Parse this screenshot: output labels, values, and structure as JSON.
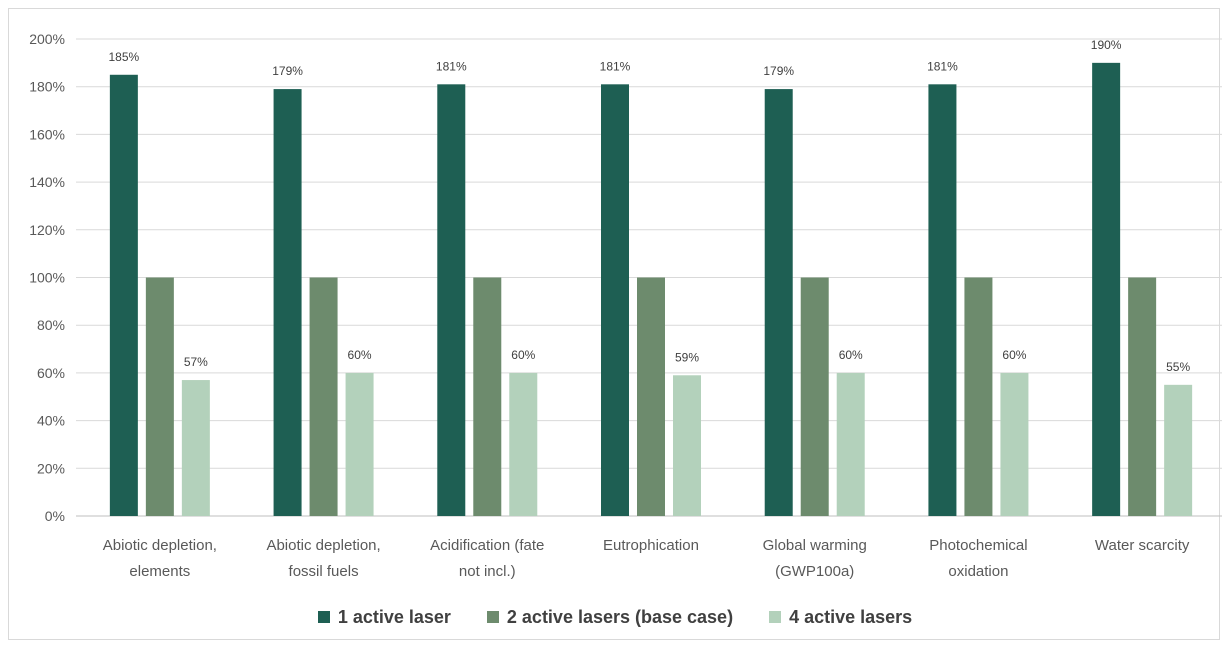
{
  "chart_data": {
    "type": "bar",
    "categories": [
      [
        "Abiotic depletion,",
        "elements"
      ],
      [
        "Abiotic depletion,",
        "fossil fuels"
      ],
      [
        "Acidification (fate",
        "not incl.)"
      ],
      [
        "Eutrophication"
      ],
      [
        "Global warming",
        "(GWP100a)"
      ],
      [
        "Photochemical",
        "oxidation"
      ],
      [
        "Water scarcity"
      ]
    ],
    "series": [
      {
        "name": "1 active laser",
        "color": "#1e5f53",
        "values": [
          185,
          179,
          181,
          181,
          179,
          181,
          190
        ],
        "data_labels": [
          "185%",
          "179%",
          "181%",
          "181%",
          "179%",
          "181%",
          "190%"
        ]
      },
      {
        "name": "2 active lasers (base case)",
        "color": "#6d8b6d",
        "values": [
          100,
          100,
          100,
          100,
          100,
          100,
          100
        ],
        "data_labels": [
          "",
          "",
          "",
          "",
          "",
          "",
          ""
        ]
      },
      {
        "name": "4 active lasers",
        "color": "#b3d1bb",
        "values": [
          57,
          60,
          60,
          59,
          60,
          60,
          55
        ],
        "data_labels": [
          "57%",
          "60%",
          "60%",
          "59%",
          "60%",
          "60%",
          "55%"
        ]
      }
    ],
    "y_ticks": [
      "0%",
      "20%",
      "40%",
      "60%",
      "80%",
      "100%",
      "120%",
      "140%",
      "160%",
      "180%",
      "200%"
    ],
    "ylim": [
      0,
      200
    ],
    "grid": true,
    "legend_position": "bottom"
  },
  "colors": {
    "grid": "#d9d9d9",
    "axis": "#bfbfbf"
  }
}
